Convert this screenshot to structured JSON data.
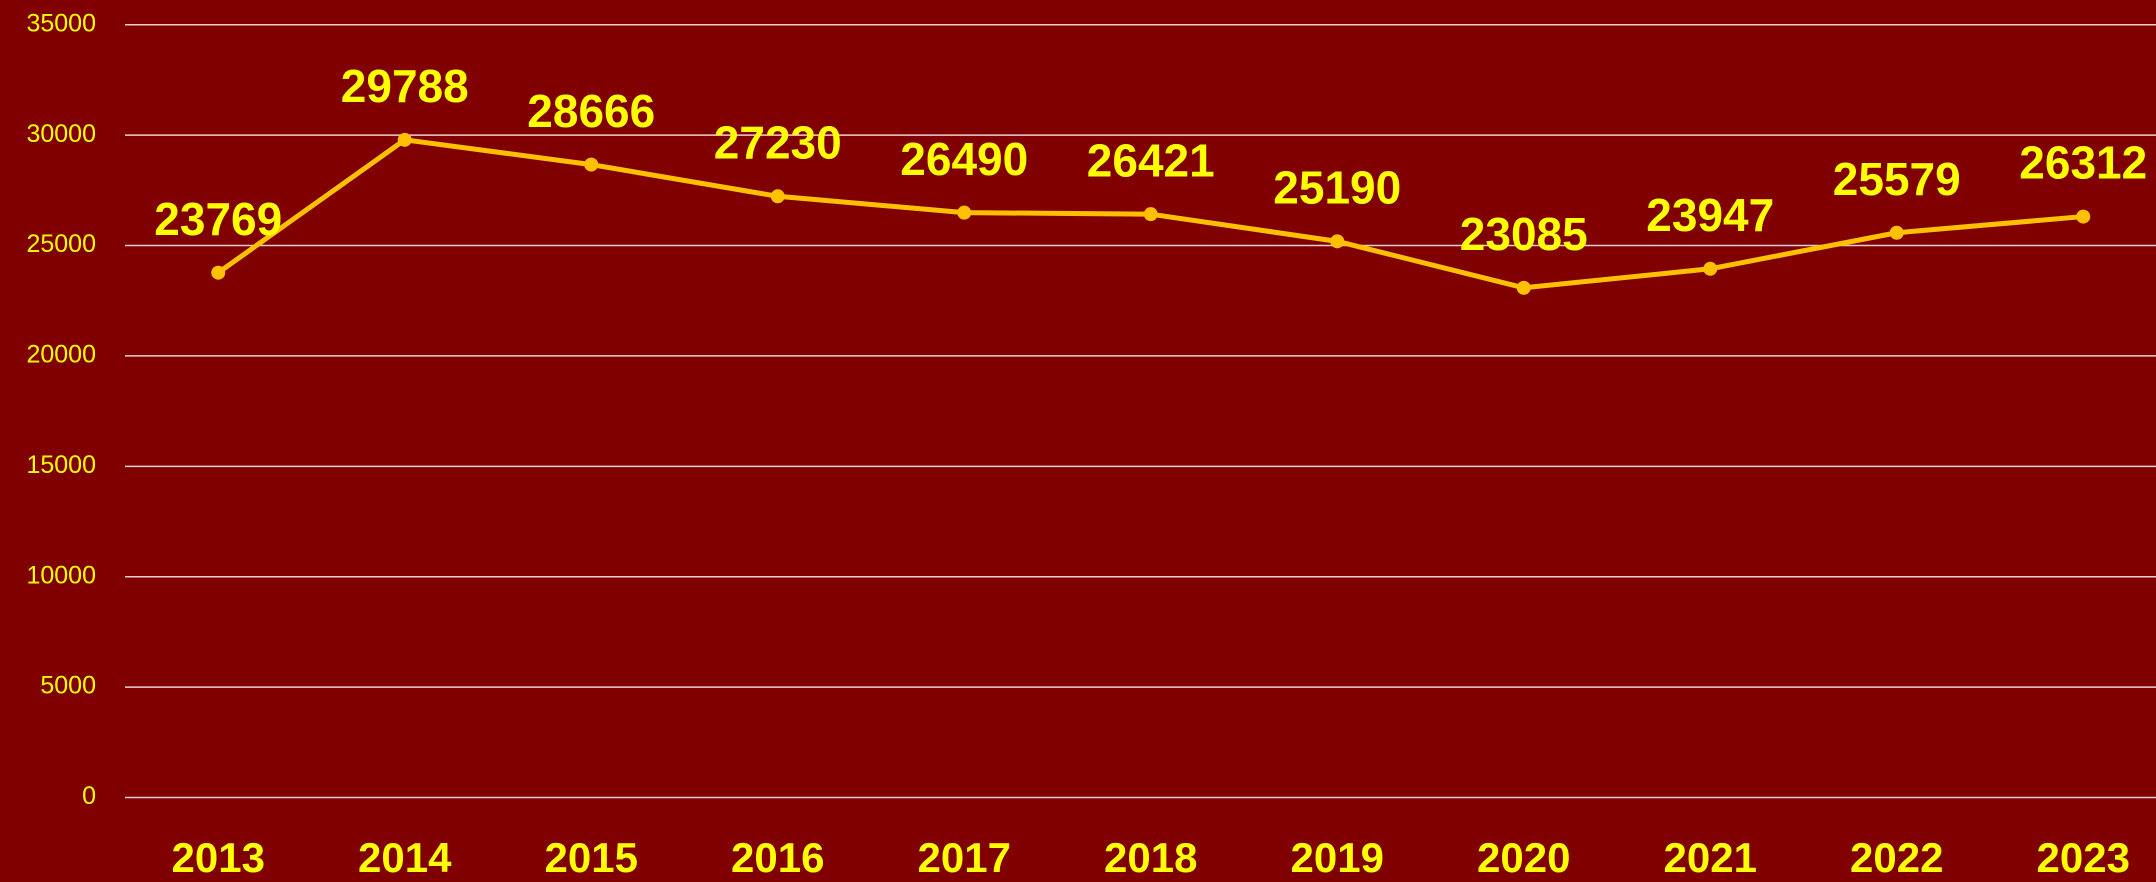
{
  "chart_data": {
    "type": "line",
    "categories": [
      "2013",
      "2014",
      "2015",
      "2016",
      "2017",
      "2018",
      "2019",
      "2020",
      "2021",
      "2022",
      "2023"
    ],
    "values": [
      23769,
      29788,
      28666,
      27230,
      26490,
      26421,
      25190,
      23085,
      23947,
      25579,
      26312
    ],
    "color": "#ffc000",
    "ylim": [
      0,
      35000
    ],
    "yticks": [
      0,
      5000,
      10000,
      15000,
      20000,
      25000,
      30000,
      35000
    ],
    "grid": true
  }
}
